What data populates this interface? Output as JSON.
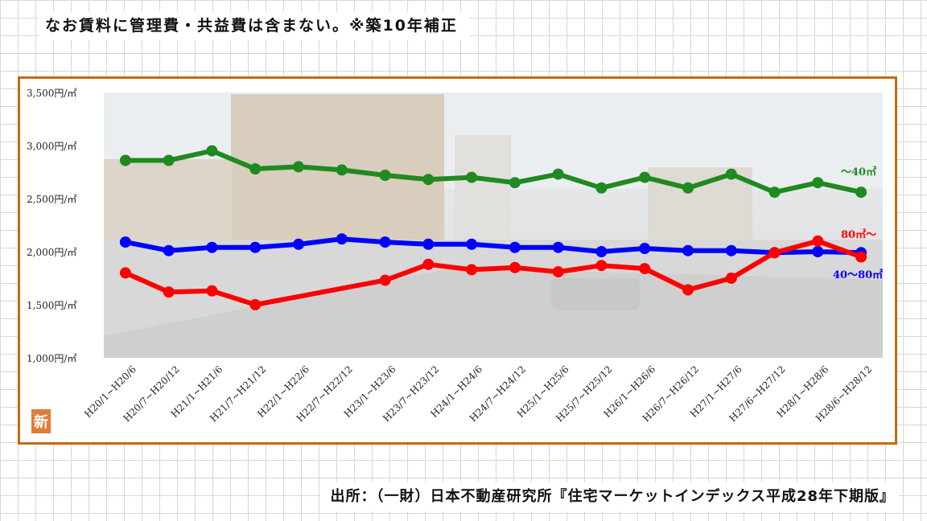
{
  "note_text": "なお賃料に管理費・共益費は含まない。※築10年補正",
  "source_text": "出所：（一財）日本不動産研究所『住宅マーケットインデックス平成28年下期版』",
  "badge_label": "新",
  "colors": {
    "frame": "#c46a10",
    "badge": "#e07b39",
    "small": "#1f8a1f",
    "large": "#ff0000",
    "medium": "#0000ff"
  },
  "chart_data": {
    "type": "line",
    "title": "",
    "xlabel": "",
    "ylabel": "",
    "ylim": [
      1000,
      3500
    ],
    "yticks": [
      {
        "value": 3500,
        "label": "3,500円/㎡"
      },
      {
        "value": 3000,
        "label": "3,000円/㎡"
      },
      {
        "value": 2500,
        "label": "2,500円/㎡"
      },
      {
        "value": 2000,
        "label": "2,000円/㎡"
      },
      {
        "value": 1500,
        "label": "1,500円/㎡"
      },
      {
        "value": 1000,
        "label": "1,000円/㎡"
      }
    ],
    "categories": [
      "H20/1~H20/6",
      "H20/7~H20/12",
      "H21/1~H21/6",
      "H21/7~H21/12",
      "H22/1~H22/6",
      "H22/7~H22/12",
      "H23/1~H23/6",
      "H23/7~H23/12",
      "H24/1~H24/6",
      "H24/7~H24/12",
      "H25/1~H25/6",
      "H25/7~H25/12",
      "H26/1~H26/6",
      "H26/7~H26/12",
      "H27/1~H27/6",
      "H27/6~H27/12",
      "H28/1~H28/6",
      "H28/6~H28/12"
    ],
    "grid": false,
    "legend": "inline labels at right end of each series",
    "series": [
      {
        "name": "～40㎡",
        "color": "#1f8a1f",
        "values": [
          2860,
          2860,
          2950,
          2780,
          2800,
          2770,
          2720,
          2680,
          2700,
          2650,
          2730,
          2600,
          2700,
          2600,
          2730,
          2560,
          2650,
          2560
        ]
      },
      {
        "name": "40～80㎡",
        "color": "#0000ff",
        "values": [
          2090,
          2010,
          2040,
          2040,
          2070,
          2120,
          2090,
          2070,
          2070,
          2040,
          2040,
          2000,
          2030,
          2010,
          2010,
          1990,
          2000,
          1990
        ]
      },
      {
        "name": "80㎡～",
        "color": "#ff0000",
        "values": [
          1800,
          1620,
          1630,
          1500,
          null,
          null,
          1730,
          1880,
          1830,
          1850,
          1810,
          1870,
          1840,
          1640,
          1750,
          1990,
          2100,
          1950
        ]
      }
    ]
  }
}
